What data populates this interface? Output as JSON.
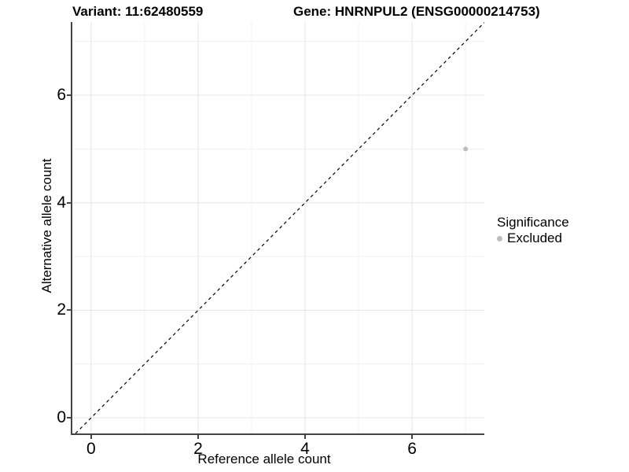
{
  "chart_data": {
    "type": "scatter",
    "title_left": "Variant: 11:62480559",
    "title_right": "Gene: HNRNPUL2 (ENSG00000214753)",
    "xlabel": "Reference allele count",
    "ylabel": "Alternative allele count",
    "xlim": [
      -0.35,
      7.35
    ],
    "ylim": [
      -0.29,
      7.36
    ],
    "x_ticks": [
      0,
      2,
      4,
      6
    ],
    "x_minor": [
      1,
      3,
      5,
      7
    ],
    "y_ticks": [
      0,
      2,
      4,
      6
    ],
    "y_minor": [
      1,
      3,
      5,
      7
    ],
    "grid": true,
    "points": [
      {
        "x": 7,
        "y": 5,
        "series": "Excluded"
      }
    ],
    "identity_line": {
      "slope": 1,
      "intercept": 0,
      "style": "dashed",
      "color": "#000000"
    },
    "legend": {
      "title": "Significance",
      "position": "right",
      "entries": [
        {
          "label": "Excluded",
          "color": "#bdbdbd"
        }
      ]
    },
    "colors": {
      "grid_major": "#e5e5e5",
      "grid_minor": "#f1f1f1",
      "axis_line": "#444444",
      "point": "#bdbdbd",
      "text": "#000000"
    }
  }
}
